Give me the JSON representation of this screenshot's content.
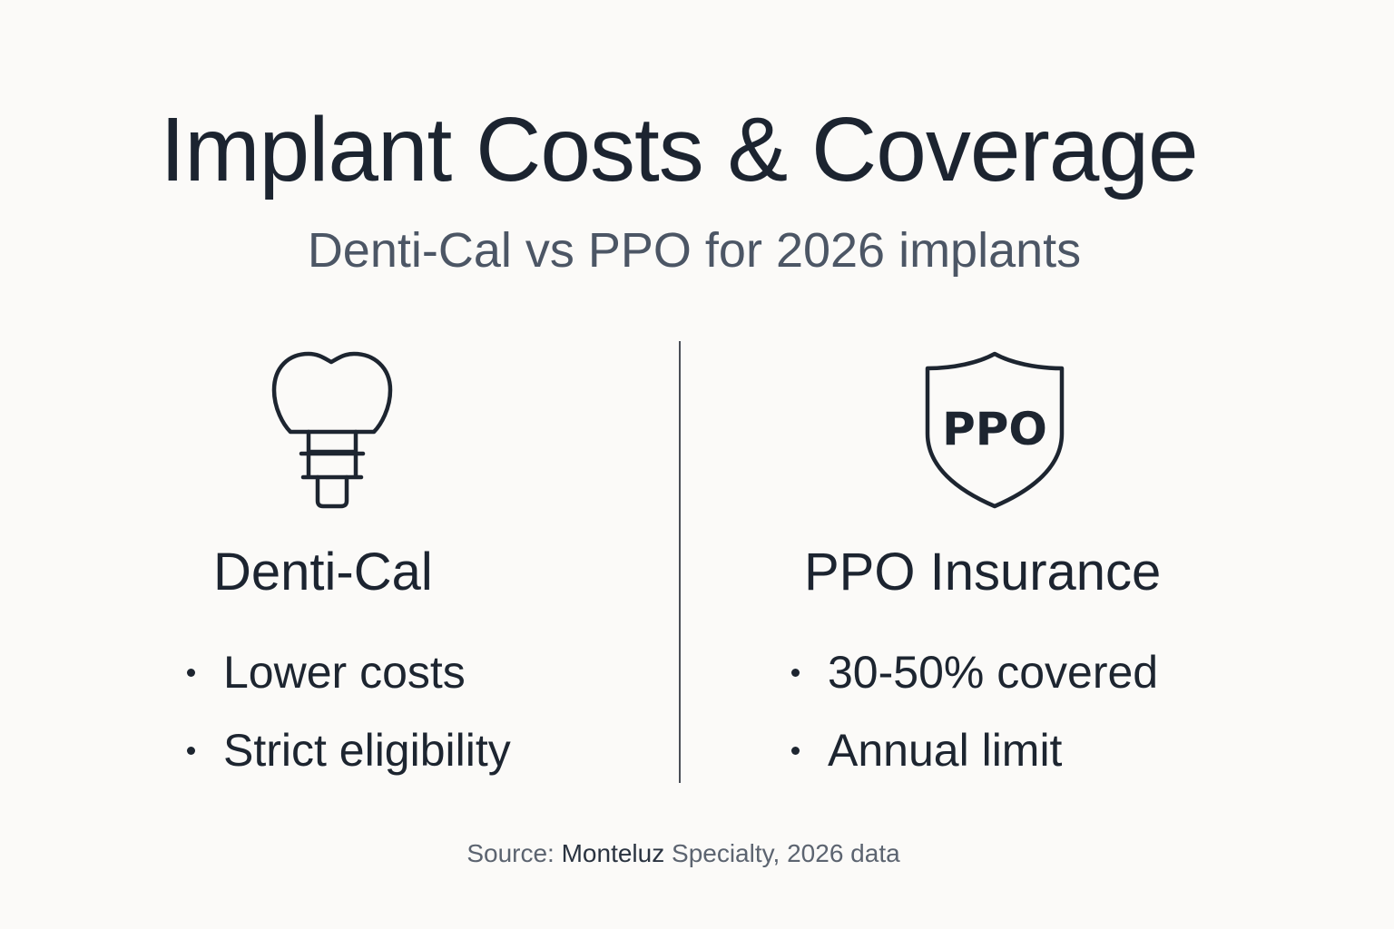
{
  "title": "Implant Costs & Coverage",
  "subtitle": "Denti-Cal vs PPO for 2026 implants",
  "left_column": {
    "icon": "dental-implant-icon",
    "heading": "Denti-Cal",
    "bullets": [
      "Lower costs",
      "Strict eligibility"
    ]
  },
  "right_column": {
    "icon": "ppo-shield-icon",
    "icon_text": "PPO",
    "heading": "PPO Insurance",
    "bullets": [
      "30-50% covered",
      "Annual limit"
    ]
  },
  "source": {
    "prefix": "Source: ",
    "brand": "Monteluz",
    "suffix": " Specialty, 2026 data"
  },
  "colors": {
    "background": "#fbfaf8",
    "text": "#1c2430",
    "subtitle": "#4c5665",
    "divider": "#4a4f58"
  }
}
